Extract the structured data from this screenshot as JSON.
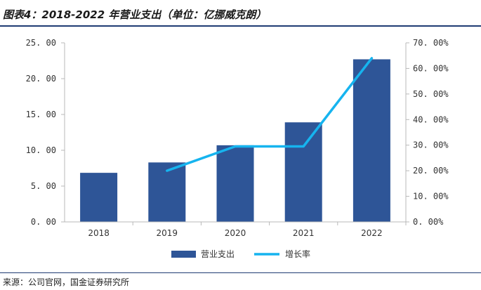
{
  "header": {
    "title": "图表4：2018-2022 年营业支出（单位：亿挪威克朗）"
  },
  "footer": {
    "source": "来源：公司官网，国金证券研究所"
  },
  "colors": {
    "bar": "#2e5597",
    "line": "#16b4ef",
    "axis": "#b8b8b8",
    "rule": "#1f3b73"
  },
  "chart_data": {
    "type": "bar+line",
    "title": "2018-2022 年营业支出（单位：亿挪威克朗）",
    "categories": [
      "2018",
      "2019",
      "2020",
      "2021",
      "2022"
    ],
    "series": [
      {
        "name": "营业支出",
        "type": "bar",
        "axis": "left",
        "values": [
          6.85,
          8.3,
          10.7,
          13.9,
          22.7
        ]
      },
      {
        "name": "增长率",
        "type": "line",
        "axis": "right",
        "values": [
          null,
          20.0,
          29.5,
          29.5,
          64.0
        ]
      }
    ],
    "left_axis": {
      "min": 0,
      "max": 25,
      "step": 5,
      "tick_labels": [
        "0. 00",
        "5. 00",
        "10. 00",
        "15. 00",
        "20. 00",
        "25. 00"
      ]
    },
    "right_axis": {
      "min": 0,
      "max": 70,
      "step": 10,
      "tick_labels": [
        "0. 00%",
        "10. 00%",
        "20. 00%",
        "30. 00%",
        "40. 00%",
        "50. 00%",
        "60. 00%",
        "70. 00%"
      ]
    },
    "legend": [
      "营业支出",
      "增长率"
    ],
    "legend_position": "bottom"
  }
}
